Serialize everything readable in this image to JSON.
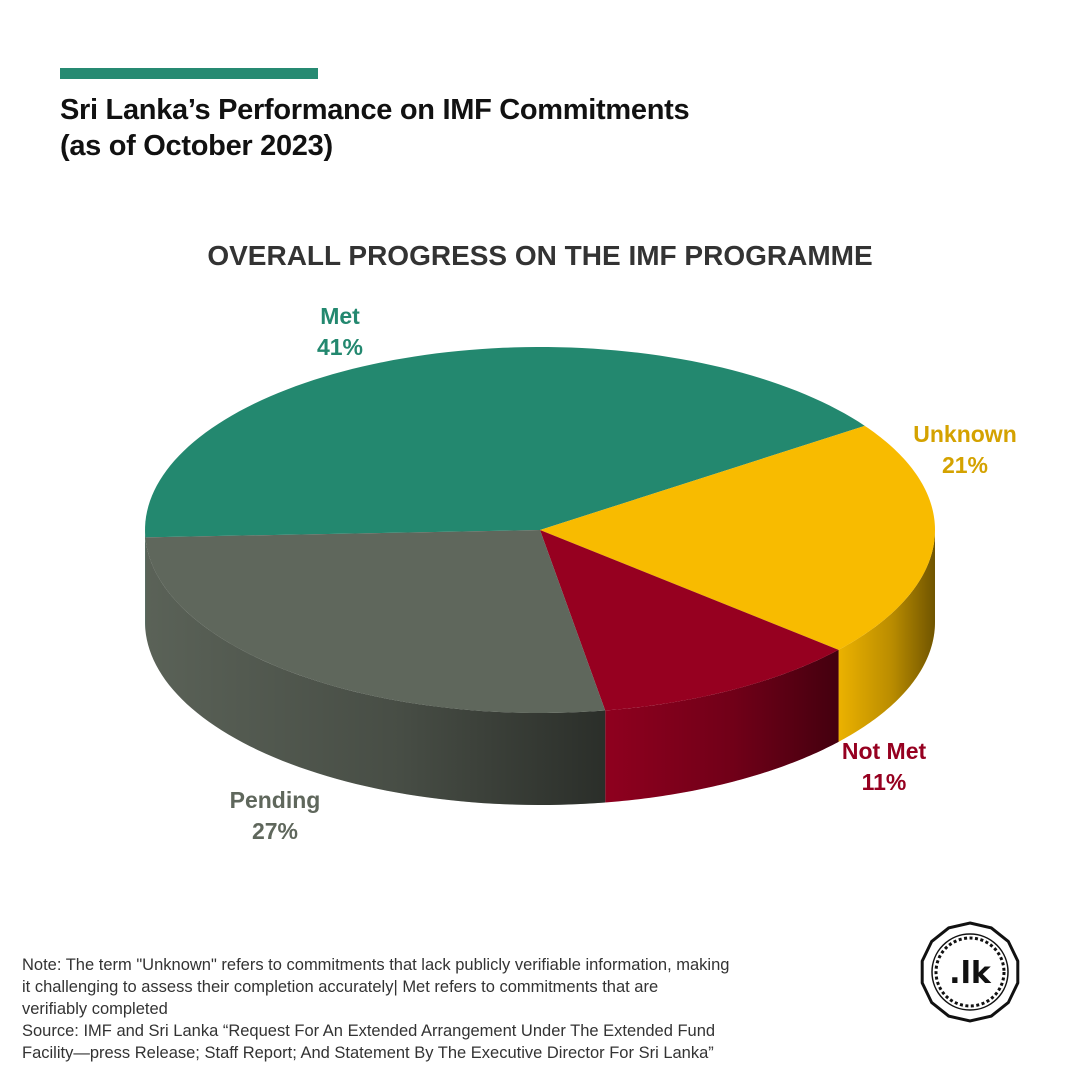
{
  "header": {
    "title_line1": "Sri Lanka’s Performance on IMF Commitments",
    "title_line2": "(as of October 2023)"
  },
  "colors": {
    "accent": "#268a72",
    "met": "#23886f",
    "unknown": "#f8bb00",
    "not_met": "#960020",
    "pending": "#5f675c"
  },
  "chart_data": {
    "type": "pie",
    "title": "OVERALL PROGRESS ON THE IMF PROGRAMME",
    "style": "3d",
    "categories": [
      "Met",
      "Unknown",
      "Not Met",
      "Pending"
    ],
    "values": [
      41,
      21,
      11,
      27
    ],
    "labels": [
      "41%",
      "21%",
      "11%",
      "27%"
    ],
    "colors": [
      "#23886f",
      "#f8bb00",
      "#960020",
      "#5f675c"
    ],
    "legend": "none"
  },
  "footer": {
    "note_lines": [
      "Note: The term \"Unknown\" refers to commitments that lack publicly verifiable information, making",
      "it challenging to assess their completion accurately| Met refers to commitments that are",
      "verifiably completed"
    ],
    "source_lines": [
      "Source: IMF and Sri Lanka “Request For An Extended Arrangement Under The Extended Fund",
      "Facility—press Release; Staff Report; And Statement By The Executive Director For Sri Lanka”"
    ]
  },
  "logo": {
    "text": ".lk",
    "icon": "lk-seal-logo-icon"
  }
}
